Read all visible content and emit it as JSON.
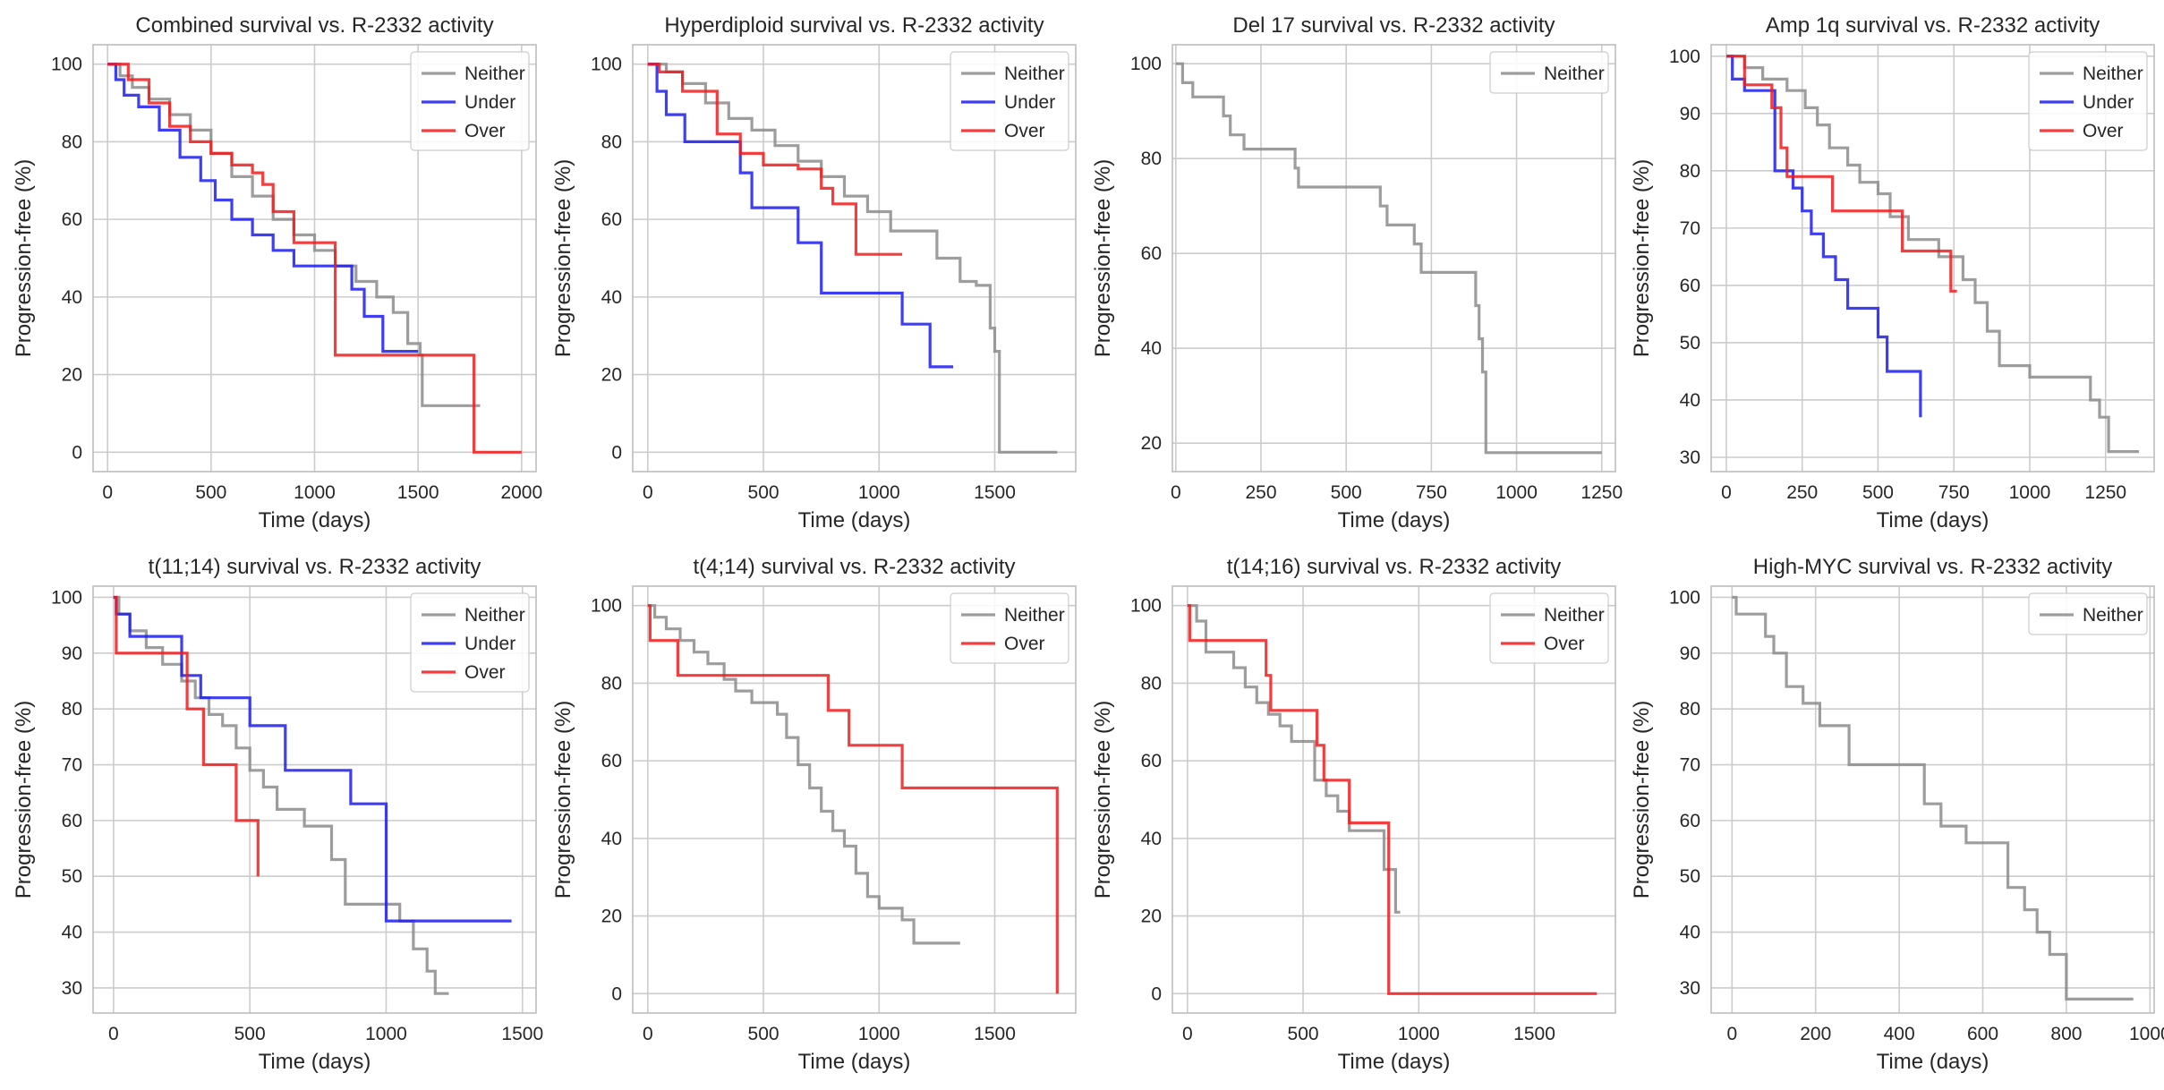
{
  "figure": {
    "background": "#ffffff",
    "grid": true
  },
  "colors": {
    "Neither": "#8c8c8c",
    "Under": "#1c1cf0",
    "Over": "#f01c1c"
  },
  "chart_data": [
    {
      "type": "line",
      "step": true,
      "title": "Combined survival vs. R-2332 activity",
      "xlabel": "Time (days)",
      "ylabel": "Progression-free (%)",
      "xlim": [
        -70,
        2070
      ],
      "ylim": [
        -5,
        105
      ],
      "xticks": [
        0,
        500,
        1000,
        1500,
        2000
      ],
      "yticks": [
        0,
        20,
        40,
        60,
        80,
        100
      ],
      "legend": "top-right",
      "series": [
        {
          "name": "Neither",
          "x": [
            0,
            60,
            120,
            200,
            300,
            400,
            500,
            600,
            700,
            800,
            900,
            1000,
            1100,
            1200,
            1300,
            1380,
            1450,
            1510,
            1520,
            1800
          ],
          "y": [
            100,
            97,
            94,
            91,
            87,
            83,
            77,
            71,
            66,
            60,
            56,
            52,
            48,
            44,
            40,
            36,
            28,
            25,
            12,
            12
          ]
        },
        {
          "name": "Under",
          "x": [
            0,
            40,
            80,
            150,
            250,
            350,
            450,
            520,
            600,
            700,
            800,
            900,
            1000,
            1100,
            1180,
            1240,
            1330,
            1500
          ],
          "y": [
            100,
            96,
            92,
            89,
            83,
            76,
            70,
            65,
            60,
            56,
            52,
            48,
            48,
            48,
            42,
            35,
            26,
            26
          ]
        },
        {
          "name": "Over",
          "x": [
            0,
            100,
            200,
            300,
            400,
            500,
            600,
            700,
            750,
            800,
            900,
            1000,
            1100,
            1770,
            2000
          ],
          "y": [
            100,
            96,
            90,
            84,
            80,
            77,
            74,
            72,
            69,
            62,
            54,
            54,
            25,
            0,
            0
          ]
        }
      ]
    },
    {
      "type": "line",
      "step": true,
      "title": "Hyperdiploid survival vs. R-2332 activity",
      "xlabel": "Time (days)",
      "ylabel": "Progression-free (%)",
      "xlim": [
        -65,
        1850
      ],
      "ylim": [
        -5,
        105
      ],
      "xticks": [
        0,
        500,
        1000,
        1500
      ],
      "yticks": [
        0,
        20,
        40,
        60,
        80,
        100
      ],
      "legend": "top-right",
      "series": [
        {
          "name": "Neither",
          "x": [
            0,
            80,
            150,
            250,
            350,
            450,
            550,
            650,
            750,
            850,
            950,
            1050,
            1150,
            1250,
            1350,
            1420,
            1480,
            1500,
            1520,
            1770
          ],
          "y": [
            100,
            98,
            95,
            90,
            86,
            83,
            79,
            75,
            71,
            66,
            62,
            57,
            57,
            50,
            44,
            43,
            32,
            26,
            0,
            0
          ]
        },
        {
          "name": "Under",
          "x": [
            0,
            40,
            80,
            160,
            300,
            400,
            450,
            550,
            650,
            750,
            850,
            1000,
            1100,
            1220,
            1320
          ],
          "y": [
            100,
            93,
            87,
            80,
            80,
            72,
            63,
            63,
            54,
            41,
            41,
            41,
            33,
            22,
            22
          ]
        },
        {
          "name": "Over",
          "x": [
            0,
            50,
            150,
            300,
            400,
            500,
            650,
            750,
            800,
            900,
            1100
          ],
          "y": [
            100,
            98,
            93,
            82,
            77,
            74,
            73,
            68,
            64,
            51,
            51
          ]
        }
      ]
    },
    {
      "type": "line",
      "step": true,
      "title": "Del 17 survival vs. R-2332 activity",
      "xlabel": "Time (days)",
      "ylabel": "Progression-free (%)",
      "xlim": [
        -10,
        1290
      ],
      "ylim": [
        14,
        104
      ],
      "xticks": [
        0,
        250,
        500,
        750,
        1000,
        1250
      ],
      "yticks": [
        20,
        40,
        60,
        80,
        100
      ],
      "legend": "top-right",
      "series": [
        {
          "name": "Neither",
          "x": [
            0,
            20,
            50,
            140,
            160,
            200,
            350,
            360,
            400,
            580,
            600,
            620,
            700,
            720,
            850,
            880,
            890,
            900,
            910,
            1250
          ],
          "y": [
            100,
            96,
            93,
            89,
            85,
            82,
            78,
            74,
            74,
            74,
            70,
            66,
            62,
            56,
            56,
            49,
            42,
            35,
            18,
            18
          ]
        }
      ]
    },
    {
      "type": "line",
      "step": true,
      "title": "Amp 1q survival vs. R-2332 activity",
      "xlabel": "Time (days)",
      "ylabel": "Progression-free (%)",
      "xlim": [
        -50,
        1410
      ],
      "ylim": [
        27.5,
        102
      ],
      "xticks": [
        0,
        250,
        500,
        750,
        1000,
        1250
      ],
      "yticks": [
        30,
        40,
        50,
        60,
        70,
        80,
        90,
        100
      ],
      "legend": "top-right",
      "series": [
        {
          "name": "Neither",
          "x": [
            0,
            60,
            120,
            200,
            260,
            300,
            340,
            400,
            440,
            500,
            540,
            600,
            700,
            780,
            820,
            860,
            900,
            1000,
            1200,
            1230,
            1260,
            1360
          ],
          "y": [
            100,
            98,
            96,
            94,
            91,
            88,
            84,
            81,
            78,
            76,
            72,
            68,
            65,
            61,
            57,
            52,
            46,
            44,
            40,
            37,
            31,
            31
          ]
        },
        {
          "name": "Under",
          "x": [
            0,
            20,
            60,
            80,
            160,
            220,
            250,
            280,
            320,
            360,
            400,
            500,
            530,
            570,
            640
          ],
          "y": [
            100,
            96,
            94,
            94,
            80,
            77,
            73,
            69,
            65,
            61,
            56,
            51,
            45,
            45,
            37
          ]
        },
        {
          "name": "Over",
          "x": [
            0,
            60,
            150,
            180,
            200,
            350,
            450,
            550,
            580,
            700,
            740,
            760
          ],
          "y": [
            100,
            95,
            91,
            84,
            79,
            73,
            73,
            73,
            66,
            66,
            59,
            59
          ]
        }
      ]
    },
    {
      "type": "line",
      "step": true,
      "title": "t(11;14) survival vs. R-2332 activity",
      "xlabel": "Time (days)",
      "ylabel": "Progression-free (%)",
      "xlim": [
        -75,
        1550
      ],
      "ylim": [
        25.5,
        102
      ],
      "xticks": [
        0,
        500,
        1000,
        1500
      ],
      "yticks": [
        30,
        40,
        50,
        60,
        70,
        80,
        90,
        100
      ],
      "legend": "top-right",
      "series": [
        {
          "name": "Neither",
          "x": [
            0,
            20,
            60,
            120,
            180,
            250,
            300,
            350,
            400,
            450,
            500,
            550,
            600,
            700,
            800,
            850,
            900,
            1050,
            1100,
            1150,
            1180,
            1230
          ],
          "y": [
            100,
            97,
            94,
            91,
            88,
            85,
            82,
            79,
            77,
            73,
            69,
            66,
            62,
            59,
            53,
            45,
            45,
            42,
            37,
            33,
            29,
            29
          ]
        },
        {
          "name": "Under",
          "x": [
            0,
            10,
            60,
            200,
            250,
            320,
            500,
            630,
            870,
            1000,
            1460
          ],
          "y": [
            100,
            97,
            93,
            93,
            86,
            82,
            77,
            69,
            63,
            42,
            42
          ]
        },
        {
          "name": "Over",
          "x": [
            0,
            10,
            210,
            270,
            330,
            450,
            530
          ],
          "y": [
            100,
            90,
            90,
            80,
            70,
            60,
            50
          ]
        }
      ]
    },
    {
      "type": "line",
      "step": true,
      "title": "t(4;14) survival vs. R-2332 activity",
      "xlabel": "Time (days)",
      "ylabel": "Progression-free (%)",
      "xlim": [
        -65,
        1850
      ],
      "ylim": [
        -5,
        105
      ],
      "xticks": [
        0,
        500,
        1000,
        1500
      ],
      "yticks": [
        0,
        20,
        40,
        60,
        80,
        100
      ],
      "legend": "top-right",
      "series": [
        {
          "name": "Neither",
          "x": [
            0,
            30,
            80,
            140,
            200,
            260,
            330,
            380,
            450,
            560,
            600,
            650,
            700,
            750,
            800,
            850,
            900,
            950,
            1000,
            1100,
            1150,
            1350
          ],
          "y": [
            100,
            97,
            94,
            91,
            88,
            85,
            81,
            78,
            75,
            72,
            66,
            59,
            53,
            47,
            42,
            38,
            31,
            25,
            22,
            19,
            13,
            13
          ]
        },
        {
          "name": "Over",
          "x": [
            0,
            10,
            130,
            720,
            780,
            870,
            1100,
            1770
          ],
          "y": [
            100,
            91,
            82,
            82,
            73,
            64,
            53,
            0
          ]
        }
      ]
    },
    {
      "type": "line",
      "step": true,
      "title": "t(14;16) survival vs. R-2332 activity",
      "xlabel": "Time (days)",
      "ylabel": "Progression-free (%)",
      "xlim": [
        -65,
        1850
      ],
      "ylim": [
        -5,
        105
      ],
      "xticks": [
        0,
        500,
        1000,
        1500
      ],
      "yticks": [
        0,
        20,
        40,
        60,
        80,
        100
      ],
      "legend": "top-right",
      "series": [
        {
          "name": "Neither",
          "x": [
            0,
            40,
            80,
            200,
            250,
            300,
            350,
            400,
            450,
            550,
            600,
            650,
            700,
            800,
            850,
            900,
            920
          ],
          "y": [
            100,
            96,
            88,
            84,
            79,
            75,
            72,
            69,
            65,
            55,
            51,
            47,
            42,
            42,
            32,
            21,
            21
          ]
        },
        {
          "name": "Over",
          "x": [
            0,
            10,
            340,
            360,
            560,
            590,
            700,
            870,
            1770
          ],
          "y": [
            100,
            91,
            82,
            73,
            64,
            55,
            44,
            0,
            0
          ]
        }
      ]
    },
    {
      "type": "line",
      "step": true,
      "title": "High-MYC survival vs. R-2332 activity",
      "xlabel": "Time (days)",
      "ylabel": "Progression-free (%)",
      "xlim": [
        -50,
        1010
      ],
      "ylim": [
        25.5,
        102
      ],
      "xticks": [
        0,
        200,
        400,
        600,
        800,
        1000
      ],
      "yticks": [
        30,
        40,
        50,
        60,
        70,
        80,
        90,
        100
      ],
      "legend": "top-right",
      "series": [
        {
          "name": "Neither",
          "x": [
            0,
            10,
            80,
            100,
            130,
            170,
            210,
            280,
            460,
            500,
            560,
            660,
            700,
            730,
            760,
            800,
            960
          ],
          "y": [
            100,
            97,
            93,
            90,
            84,
            81,
            77,
            70,
            63,
            59,
            56,
            48,
            44,
            40,
            36,
            28,
            28
          ]
        }
      ]
    }
  ]
}
